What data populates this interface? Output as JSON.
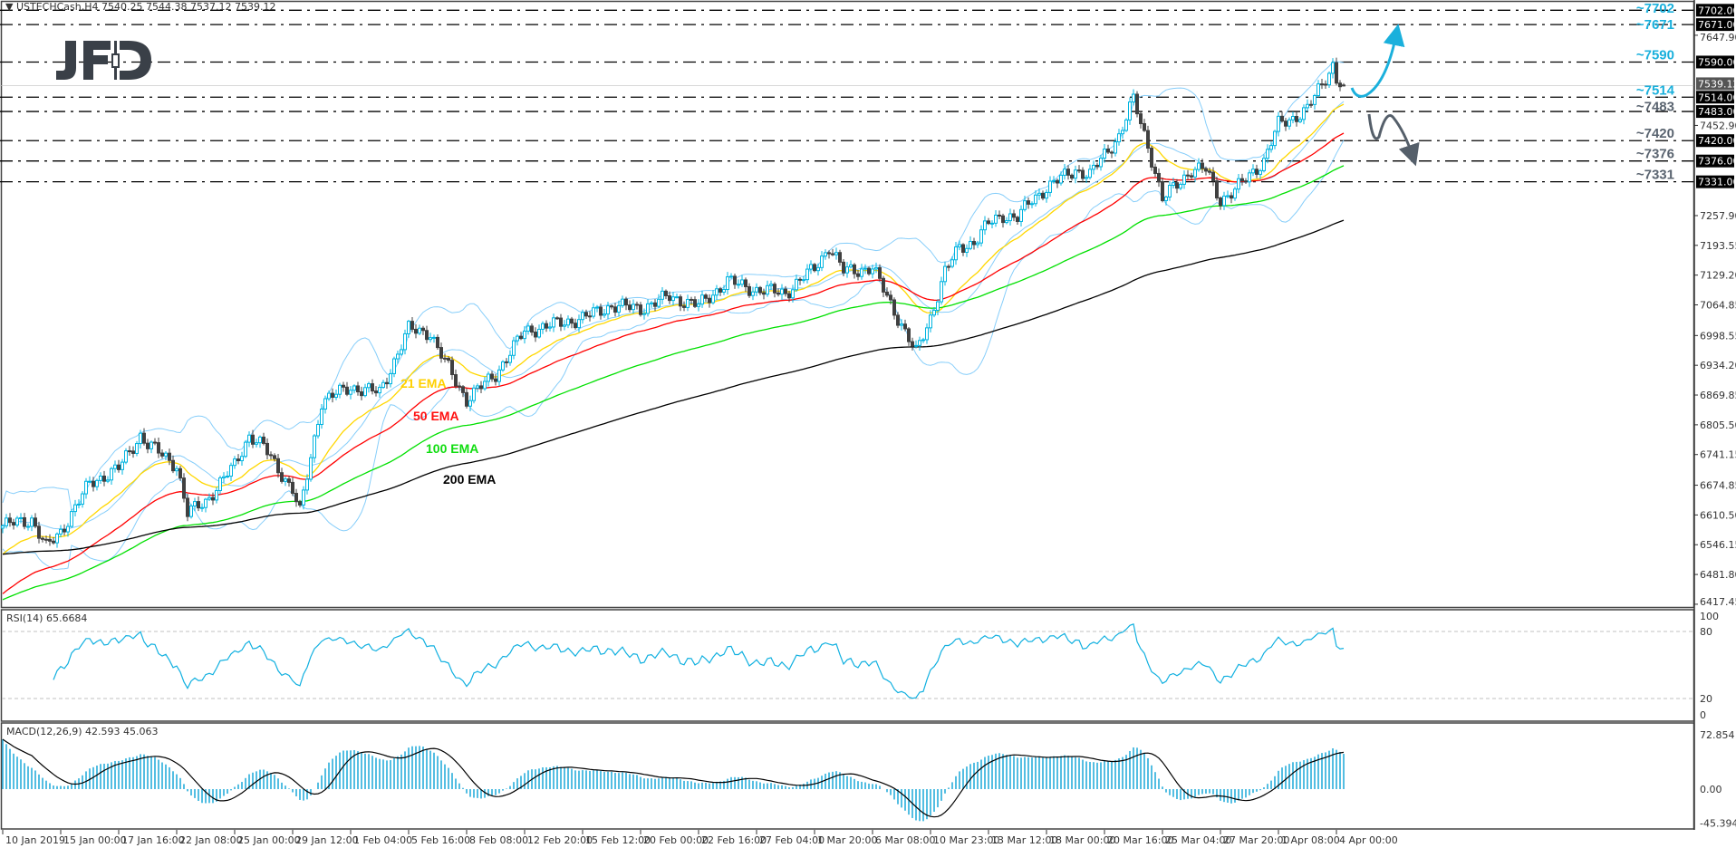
{
  "header": {
    "symbol_line": "▼ USTECHCash,H4  7540.25 7544.38 7537.12 7539.12"
  },
  "logo": {
    "text": "JFD",
    "color": "#3a4048"
  },
  "colors": {
    "bull": "#00b4e0",
    "bear": "#404040",
    "ema21": "#ffd700",
    "ema50": "#ff0000",
    "ema100": "#00e000",
    "ema200": "#000000",
    "bollinger": "#87cefa",
    "rsi": "#10b0e0",
    "macd_hist": "#1aa8d8",
    "macd_signal": "#000000",
    "level_up": "#1ab0dc",
    "level_down": "#5a6470"
  },
  "chart_data": [
    {
      "type": "candlestick",
      "title": "USTECHCash,H4",
      "ohlc_last": {
        "open": 7540.25,
        "high": 7544.38,
        "low": 7537.12,
        "close": 7539.12
      },
      "bars_per_time_label": 16,
      "x_tick_labels": [
        "10 Jan 2019",
        "15 Jan 00:00",
        "17 Jan 16:00",
        "22 Jan 08:00",
        "25 Jan 00:00",
        "29 Jan 12:00",
        "1 Feb 04:00",
        "5 Feb 16:00",
        "8 Feb 08:00",
        "12 Feb 20:00",
        "15 Feb 12:00",
        "20 Feb 00:00",
        "22 Feb 16:00",
        "27 Feb 04:00",
        "1 Mar 20:00",
        "6 Mar 08:00",
        "10 Mar 23:00",
        "13 Mar 12:00",
        "18 Mar 00:00",
        "20 Mar 16:00",
        "25 Mar 04:00",
        "27 Mar 20:00",
        "1 Apr 08:00",
        "4 Apr 00:00"
      ],
      "y_tick_labels": [
        "7647.90",
        "7452.90",
        "7257.90",
        "7193.55",
        "7129.20",
        "7064.85",
        "6998.55",
        "6934.20",
        "6869.85",
        "6805.50",
        "6741.15",
        "6674.85",
        "6610.50",
        "6546.15",
        "6481.80",
        "6417.45"
      ],
      "ylim": [
        6417.45,
        7702.0
      ],
      "close_path": [
        [
          0,
          6587
        ],
        [
          8,
          6601
        ],
        [
          12,
          6540
        ],
        [
          16,
          6574
        ],
        [
          24,
          6679
        ],
        [
          32,
          6711
        ],
        [
          38,
          6783
        ],
        [
          40,
          6763
        ],
        [
          48,
          6718
        ],
        [
          51,
          6613
        ],
        [
          56,
          6640
        ],
        [
          64,
          6718
        ],
        [
          68,
          6783
        ],
        [
          72,
          6757
        ],
        [
          80,
          6665
        ],
        [
          82,
          6615
        ],
        [
          88,
          6856
        ],
        [
          96,
          6887
        ],
        [
          104,
          6875
        ],
        [
          112,
          7012
        ],
        [
          118,
          7005
        ],
        [
          120,
          6969
        ],
        [
          128,
          6860
        ],
        [
          136,
          6915
        ],
        [
          144,
          7008
        ],
        [
          152,
          7022
        ],
        [
          160,
          7036
        ],
        [
          168,
          7063
        ],
        [
          176,
          7057
        ],
        [
          184,
          7083
        ],
        [
          192,
          7063
        ],
        [
          200,
          7116
        ],
        [
          208,
          7097
        ],
        [
          216,
          7091
        ],
        [
          224,
          7144
        ],
        [
          228,
          7191
        ],
        [
          232,
          7138
        ],
        [
          240,
          7144
        ],
        [
          248,
          7022
        ],
        [
          252,
          6960
        ],
        [
          256,
          7038
        ],
        [
          260,
          7136
        ],
        [
          264,
          7189
        ],
        [
          268,
          7201
        ],
        [
          272,
          7240
        ],
        [
          276,
          7259
        ],
        [
          280,
          7253
        ],
        [
          284,
          7292
        ],
        [
          288,
          7318
        ],
        [
          292,
          7338
        ],
        [
          296,
          7357
        ],
        [
          300,
          7345
        ],
        [
          304,
          7390
        ],
        [
          308,
          7430
        ],
        [
          312,
          7508
        ],
        [
          316,
          7410
        ],
        [
          320,
          7292
        ],
        [
          324,
          7326
        ],
        [
          328,
          7357
        ],
        [
          332,
          7357
        ],
        [
          336,
          7292
        ],
        [
          340,
          7312
        ],
        [
          344,
          7345
        ],
        [
          348,
          7377
        ],
        [
          352,
          7455
        ],
        [
          356,
          7469
        ],
        [
          360,
          7488
        ],
        [
          364,
          7541
        ],
        [
          367,
          7585
        ],
        [
          368,
          7553
        ],
        [
          370,
          7539.12
        ]
      ],
      "indicators": {
        "ema": [
          {
            "period": 21,
            "label": "21 EMA",
            "start": 6519
          },
          {
            "period": 50,
            "label": "50 EMA",
            "start": 6434
          },
          {
            "period": 100,
            "label": "100 EMA",
            "start": 6424
          },
          {
            "period": 200,
            "label": "200 EMA",
            "start": 6525
          }
        ],
        "bollinger": {
          "period": 20,
          "deviations": 2
        }
      },
      "levels": [
        {
          "value": 7702,
          "label": "~7702",
          "box": "7702.00",
          "dir": "up"
        },
        {
          "value": 7671,
          "label": "~7671",
          "box": "7671.00",
          "dir": "up"
        },
        {
          "value": 7590,
          "label": "~7590",
          "box": "7590.00",
          "dir": "up"
        },
        {
          "value": 7514,
          "label": "~7514",
          "box": "7514.00",
          "dir": "up"
        },
        {
          "value": 7483,
          "label": "~7483",
          "box": "7483.00",
          "dir": "down"
        },
        {
          "value": 7420,
          "label": "~7420",
          "box": "7420.00",
          "dir": "down"
        },
        {
          "value": 7376,
          "label": "~7376",
          "box": "7376.00",
          "dir": "down"
        },
        {
          "value": 7331,
          "label": "~7331",
          "box": "7331.00",
          "dir": "down"
        }
      ],
      "current_price": {
        "value": 7539.12,
        "box": "7539.12"
      },
      "scenario_arrows": [
        "up-scenario-arrow",
        "down-scenario-arrow"
      ]
    },
    {
      "type": "line",
      "title": "RSI(14) 65.6684",
      "value": 65.6684,
      "ylim": [
        0,
        100
      ],
      "y_tick_labels": [
        "100",
        "80",
        "20",
        "0"
      ],
      "levels": [
        80,
        20
      ]
    },
    {
      "type": "bar",
      "title": "MACD(12,26,9) 42.593 45.063",
      "macd": 42.593,
      "signal": 45.063,
      "ylim": [
        -45.394,
        72.854
      ],
      "y_tick_labels": [
        "72.854",
        "0.00",
        "-45.394"
      ]
    }
  ]
}
